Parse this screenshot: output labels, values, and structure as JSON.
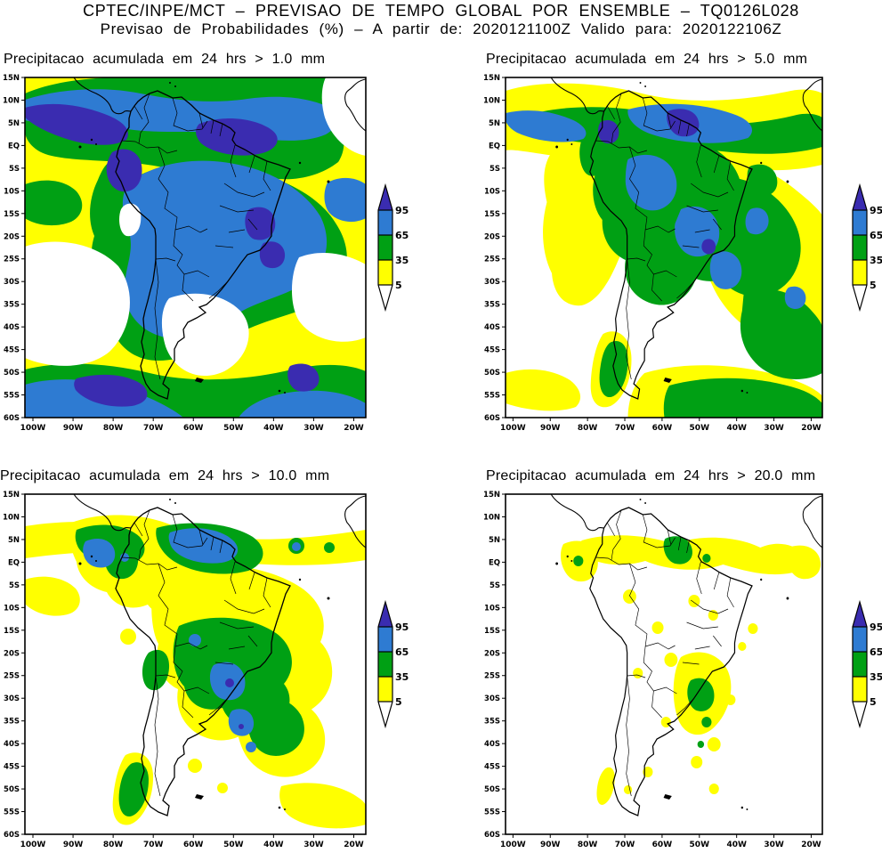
{
  "header": {
    "line1": "CPTEC/INPE/MCT – PREVISAO DE TEMPO GLOBAL POR ENSEMBLE – TQ0126L028",
    "line2": "Previsao de Probabilidades (%) –  A partir de: 2020121100Z  Valido para: 2020122106Z"
  },
  "panels": [
    {
      "title": "Precipitacao acumulada em 24 hrs > 1.0 mm"
    },
    {
      "title": "Precipitacao acumulada em 24 hrs > 5.0 mm"
    },
    {
      "title": "Precipitacao acumulada em 24 hrs > 10.0 mm"
    },
    {
      "title": "Precipitacao acumulada em 24 hrs > 20.0 mm"
    }
  ],
  "axes": {
    "lat_ticks": [
      {
        "value": 15,
        "label": "15N"
      },
      {
        "value": 10,
        "label": "10N"
      },
      {
        "value": 5,
        "label": "5N"
      },
      {
        "value": 0,
        "label": "EQ"
      },
      {
        "value": -5,
        "label": "5S"
      },
      {
        "value": -10,
        "label": "10S"
      },
      {
        "value": -15,
        "label": "15S"
      },
      {
        "value": -20,
        "label": "20S"
      },
      {
        "value": -25,
        "label": "25S"
      },
      {
        "value": -30,
        "label": "30S"
      },
      {
        "value": -35,
        "label": "35S"
      },
      {
        "value": -40,
        "label": "40S"
      },
      {
        "value": -45,
        "label": "45S"
      },
      {
        "value": -50,
        "label": "50S"
      },
      {
        "value": -55,
        "label": "55S"
      },
      {
        "value": -60,
        "label": "60S"
      }
    ],
    "lon_ticks": [
      {
        "value": 100,
        "label": "100W"
      },
      {
        "value": 90,
        "label": "90W"
      },
      {
        "value": 80,
        "label": "80W"
      },
      {
        "value": 70,
        "label": "70W"
      },
      {
        "value": 60,
        "label": "60W"
      },
      {
        "value": 50,
        "label": "50W"
      },
      {
        "value": 40,
        "label": "40W"
      },
      {
        "value": 30,
        "label": "30W"
      },
      {
        "value": 20,
        "label": "20W"
      }
    ]
  },
  "colorbar": {
    "labels": [
      "95",
      "65",
      "35",
      "5"
    ],
    "segment_colors": [
      "#3a2cb0",
      "#2e7bd2",
      "#00a014",
      "#ffff00",
      "#ffffff"
    ]
  },
  "chart_data": [
    {
      "type": "filled_contour_map",
      "title": "Precipitacao acumulada em 24 hrs > 1.0 mm",
      "variable": "probability (%)",
      "threshold_mm": 1.0,
      "region": "South America",
      "lon_domain": [
        "105W",
        "15W"
      ],
      "lat_domain": [
        "15N",
        "60S"
      ],
      "contour_levels_percent": [
        5,
        35,
        65,
        95
      ],
      "level_colors": [
        "#ffffff",
        "#ffff00",
        "#00a014",
        "#2e7bd2",
        "#3a2cb0"
      ],
      "legend_position": "right-center",
      "summary": "65-95% over most of the Amazon basin, central Brazil and a SW-NE band into the South Atlantic; >95% streaks near 5N, Colombia, eastern Brazil and the far-southern ocean; <5% over the subtropical SE Pacific, central Argentina, mid South Atlantic and NE corner."
    },
    {
      "type": "filled_contour_map",
      "title": "Precipitacao acumulada em 24 hrs > 5.0 mm",
      "variable": "probability (%)",
      "threshold_mm": 5.0,
      "region": "South America",
      "lon_domain": [
        "105W",
        "15W"
      ],
      "lat_domain": [
        "15N",
        "60S"
      ],
      "contour_levels_percent": [
        5,
        35,
        65,
        95
      ],
      "level_colors": [
        "#ffffff",
        "#ffff00",
        "#00a014",
        "#2e7bd2",
        "#3a2cb0"
      ],
      "legend_position": "right-center",
      "summary": "35-95% along the ITCZ near 5N, the central Amazon and a SE-Brazil/Atlantic diagonal band; small >95% cores near the Guianas, Colombia and Minas Gerais; large white <5% areas over the oceans and Argentina."
    },
    {
      "type": "filled_contour_map",
      "title": "Precipitacao acumulada em 24 hrs > 10.0 mm",
      "variable": "probability (%)",
      "threshold_mm": 10.0,
      "region": "South America",
      "lon_domain": [
        "105W",
        "15W"
      ],
      "lat_domain": [
        "15N",
        "60S"
      ],
      "contour_levels_percent": [
        5,
        35,
        65,
        95
      ],
      "level_colors": [
        "#ffffff",
        "#ffff00",
        "#00a014",
        "#2e7bd2",
        "#3a2cb0"
      ],
      "legend_position": "right-center",
      "summary": "Mostly 5-65%: yellow band along the ITCZ, yellow/green over central-eastern Brazil and a SE band, green along Patagonia; isolated blue 65-95% cores over northern South America and SE Brazil; white elsewhere."
    },
    {
      "type": "filled_contour_map",
      "title": "Precipitacao acumulada em 24 hrs > 20.0 mm",
      "variable": "probability (%)",
      "threshold_mm": 20.0,
      "region": "South America",
      "lon_domain": [
        "105W",
        "15W"
      ],
      "lat_domain": [
        "15N",
        "60S"
      ],
      "contour_levels_percent": [
        5,
        35,
        65,
        95
      ],
      "level_colors": [
        "#ffffff",
        "#ffff00",
        "#00a014",
        "#2e7bd2",
        "#3a2cb0"
      ],
      "legend_position": "right-center",
      "summary": "Mostly <5% (white); scattered 5-35% yellow blobs along the ITCZ, Colombia and SE Brazil with a few 35-65% green cores near the Guianas and Minas Gerais."
    }
  ]
}
